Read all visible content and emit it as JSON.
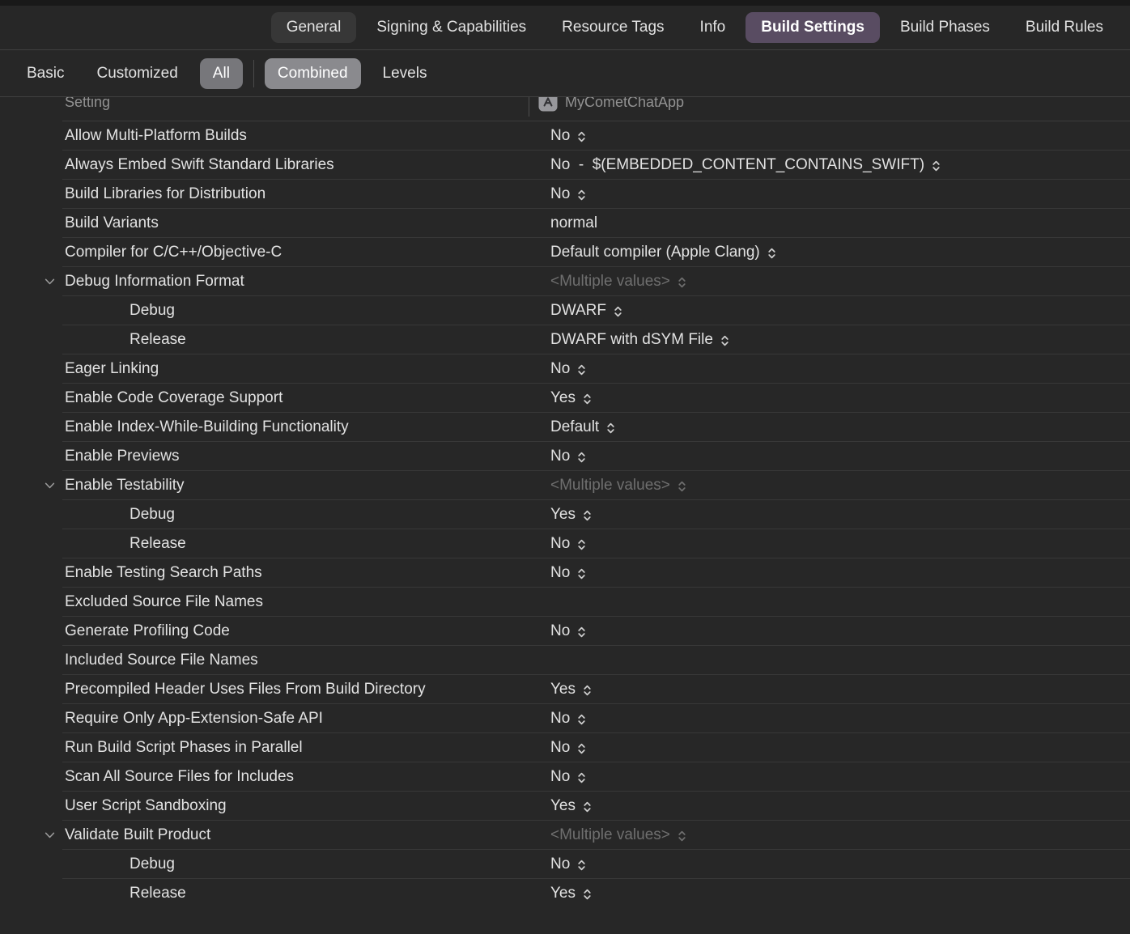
{
  "colors": {
    "background": "#272727",
    "selected_tab_accent": "#594c62",
    "selected_tab_dark": "#373737",
    "filter_pill_gray": "#8a8a8e",
    "muted_value_text": "#6f6f6f",
    "row_separator": "#383838"
  },
  "tab_bar": {
    "tabs": [
      {
        "label": "General",
        "style": "dark"
      },
      {
        "label": "Signing & Capabilities",
        "style": "none"
      },
      {
        "label": "Resource Tags",
        "style": "none"
      },
      {
        "label": "Info",
        "style": "none"
      },
      {
        "label": "Build Settings",
        "style": "accent"
      },
      {
        "label": "Build Phases",
        "style": "none"
      },
      {
        "label": "Build Rules",
        "style": "none"
      }
    ]
  },
  "filter_bar": {
    "scopes": [
      {
        "label": "Basic",
        "pill": false
      },
      {
        "label": "Customized",
        "pill": false
      },
      {
        "label": "All",
        "pill": true
      }
    ],
    "views": [
      {
        "label": "Combined",
        "pill": true
      },
      {
        "label": "Levels",
        "pill": false
      }
    ]
  },
  "table": {
    "columns": {
      "setting": "Setting",
      "target": "MyCometChatApp"
    },
    "rows": [
      {
        "label": "Allow Multi-Platform Builds",
        "value": "No",
        "stepper": true,
        "indent": 0,
        "group": false,
        "muted": false
      },
      {
        "label": "Always Embed Swift Standard Libraries",
        "value": "No  -  $(EMBEDDED_CONTENT_CONTAINS_SWIFT)",
        "stepper": true,
        "indent": 0,
        "group": false,
        "muted": false
      },
      {
        "label": "Build Libraries for Distribution",
        "value": "No",
        "stepper": true,
        "indent": 0,
        "group": false,
        "muted": false
      },
      {
        "label": "Build Variants",
        "value": "normal",
        "stepper": false,
        "indent": 0,
        "group": false,
        "muted": false
      },
      {
        "label": "Compiler for C/C++/Objective-C",
        "value": "Default compiler (Apple Clang)",
        "stepper": true,
        "indent": 0,
        "group": false,
        "muted": false
      },
      {
        "label": "Debug Information Format",
        "value": "<Multiple values>",
        "stepper": true,
        "indent": 0,
        "group": true,
        "muted": true
      },
      {
        "label": "Debug",
        "value": "DWARF",
        "stepper": true,
        "indent": 1,
        "group": false,
        "muted": false
      },
      {
        "label": "Release",
        "value": "DWARF with dSYM File",
        "stepper": true,
        "indent": 1,
        "group": false,
        "muted": false
      },
      {
        "label": "Eager Linking",
        "value": "No",
        "stepper": true,
        "indent": 0,
        "group": false,
        "muted": false
      },
      {
        "label": "Enable Code Coverage Support",
        "value": "Yes",
        "stepper": true,
        "indent": 0,
        "group": false,
        "muted": false
      },
      {
        "label": "Enable Index-While-Building Functionality",
        "value": "Default",
        "stepper": true,
        "indent": 0,
        "group": false,
        "muted": false
      },
      {
        "label": "Enable Previews",
        "value": "No",
        "stepper": true,
        "indent": 0,
        "group": false,
        "muted": false
      },
      {
        "label": "Enable Testability",
        "value": "<Multiple values>",
        "stepper": true,
        "indent": 0,
        "group": true,
        "muted": true
      },
      {
        "label": "Debug",
        "value": "Yes",
        "stepper": true,
        "indent": 1,
        "group": false,
        "muted": false
      },
      {
        "label": "Release",
        "value": "No",
        "stepper": true,
        "indent": 1,
        "group": false,
        "muted": false
      },
      {
        "label": "Enable Testing Search Paths",
        "value": "No",
        "stepper": true,
        "indent": 0,
        "group": false,
        "muted": false
      },
      {
        "label": "Excluded Source File Names",
        "value": "",
        "stepper": false,
        "indent": 0,
        "group": false,
        "muted": false
      },
      {
        "label": "Generate Profiling Code",
        "value": "No",
        "stepper": true,
        "indent": 0,
        "group": false,
        "muted": false
      },
      {
        "label": "Included Source File Names",
        "value": "",
        "stepper": false,
        "indent": 0,
        "group": false,
        "muted": false
      },
      {
        "label": "Precompiled Header Uses Files From Build Directory",
        "value": "Yes",
        "stepper": true,
        "indent": 0,
        "group": false,
        "muted": false
      },
      {
        "label": "Require Only App-Extension-Safe API",
        "value": "No",
        "stepper": true,
        "indent": 0,
        "group": false,
        "muted": false
      },
      {
        "label": "Run Build Script Phases in Parallel",
        "value": "No",
        "stepper": true,
        "indent": 0,
        "group": false,
        "muted": false
      },
      {
        "label": "Scan All Source Files for Includes",
        "value": "No",
        "stepper": true,
        "indent": 0,
        "group": false,
        "muted": false
      },
      {
        "label": "User Script Sandboxing",
        "value": "Yes",
        "stepper": true,
        "indent": 0,
        "group": false,
        "muted": false
      },
      {
        "label": "Validate Built Product",
        "value": "<Multiple values>",
        "stepper": true,
        "indent": 0,
        "group": true,
        "muted": true
      },
      {
        "label": "Debug",
        "value": "No",
        "stepper": true,
        "indent": 1,
        "group": false,
        "muted": false
      },
      {
        "label": "Release",
        "value": "Yes",
        "stepper": true,
        "indent": 1,
        "group": false,
        "muted": false
      }
    ]
  }
}
